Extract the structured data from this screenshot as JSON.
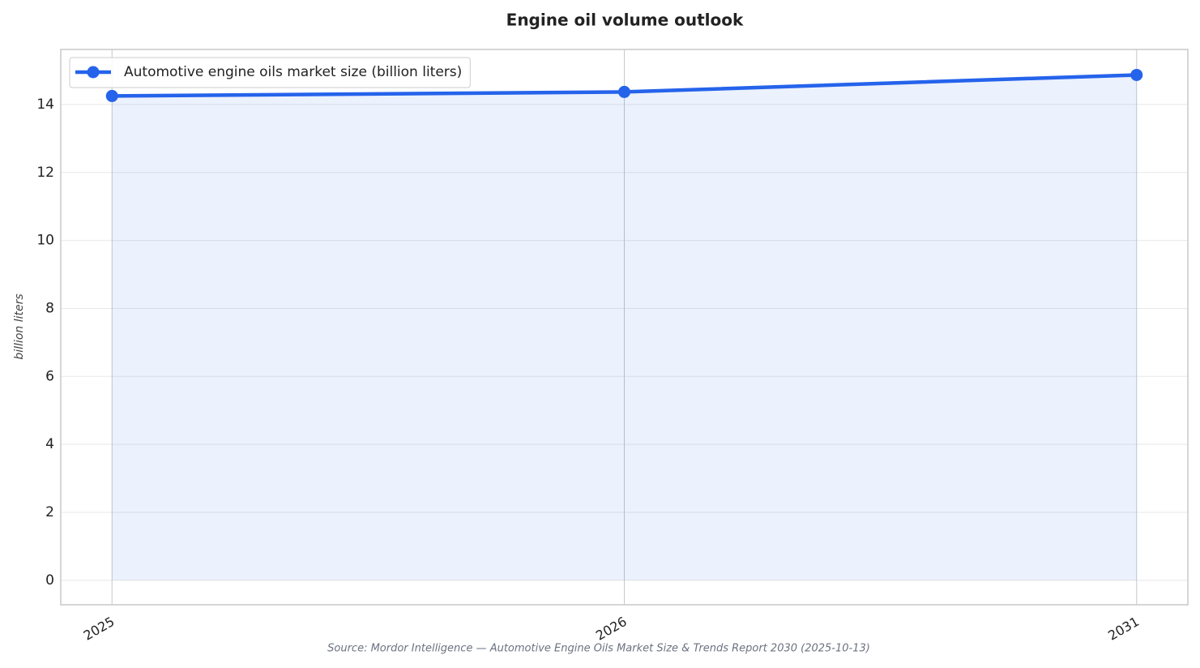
{
  "chart_data": {
    "type": "line",
    "title": "Engine oil volume outlook",
    "y_label": "billion liters",
    "source": "Source: Mordor Intelligence — Automotive Engine Oils Market Size & Trends Report 2030 (2025-10-13)",
    "categories": [
      "2025",
      "2026",
      "2031"
    ],
    "series": [
      {
        "name": "Automotive engine oils market size (billion liters)",
        "color": "#2563eb",
        "values": [
          14.25,
          14.37,
          14.87
        ]
      }
    ],
    "ylim": [
      -0.72,
      15.62
    ],
    "yticks": [
      0,
      2,
      4,
      6,
      8,
      10,
      12,
      14
    ],
    "grid": true,
    "fill": true,
    "legend": "upper left"
  }
}
